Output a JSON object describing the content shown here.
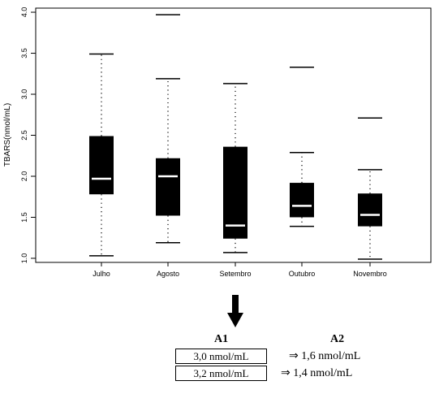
{
  "chart_data": {
    "type": "boxplot",
    "ylabel": "TBARS(nmol/mL)",
    "xlabel": "",
    "ylim": [
      0.95,
      4.05
    ],
    "yticks": [
      "1.0",
      "1.5",
      "2.0",
      "2.5",
      "3.0",
      "3.5",
      "4.0"
    ],
    "categories": [
      "Julho",
      "Agosto",
      "Setembro",
      "Outubro",
      "Novembro"
    ],
    "boxes": [
      {
        "min": 1.03,
        "q1": 1.78,
        "median": 1.97,
        "q3": 2.49,
        "max": 3.49,
        "outliers": []
      },
      {
        "min": 1.19,
        "q1": 1.52,
        "median": 2.0,
        "q3": 2.22,
        "max": 3.19,
        "outliers": [
          3.97
        ]
      },
      {
        "min": 1.07,
        "q1": 1.24,
        "median": 1.4,
        "q3": 2.36,
        "max": 3.13,
        "outliers": []
      },
      {
        "min": 1.39,
        "q1": 1.5,
        "median": 1.64,
        "q3": 1.92,
        "max": 2.29,
        "outliers": [
          3.33
        ]
      },
      {
        "min": 0.99,
        "q1": 1.39,
        "median": 1.53,
        "q3": 1.79,
        "max": 2.08,
        "outliers": [
          2.71
        ]
      }
    ],
    "grid": false,
    "legend": "none"
  },
  "table": {
    "header_a1": "A1",
    "header_a2": "A2",
    "rows": [
      {
        "a1": "3,0 nmol/mL",
        "a2": "⇒ 1,6 nmol/mL"
      },
      {
        "a1": "3,2 nmol/mL",
        "a2": "⇒  1,4 nmol/mL"
      }
    ]
  }
}
